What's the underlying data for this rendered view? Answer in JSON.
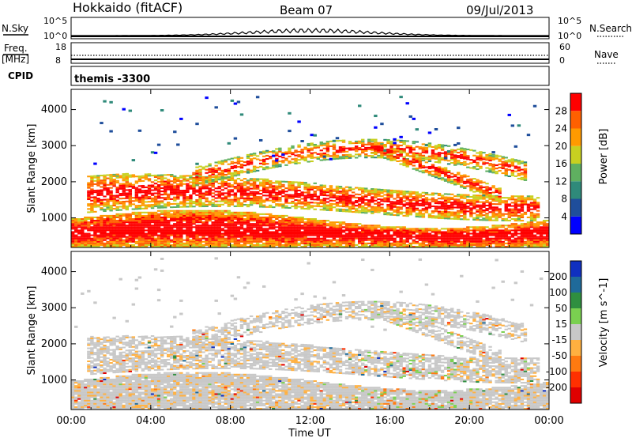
{
  "header": {
    "station": "Hokkaido (fitACF)",
    "beam": "Beam 07",
    "date": "09/Jul/2013"
  },
  "strip": {
    "nsky_label": "N.Sky",
    "nsearch_label": "N.Search",
    "nsky_ticks": [
      "10^5",
      "10^0"
    ],
    "nsearch_ticks": [
      "10^5",
      "10^0"
    ],
    "freq_label": "Freq.",
    "freq_unit": "[MHz]",
    "freq_ticks": [
      "18",
      "8"
    ],
    "nave_label": "Nave",
    "nave_ticks": [
      "60",
      "0"
    ],
    "cpid_label": "CPID",
    "cpid_value": "themis -3300"
  },
  "chart_data": [
    {
      "type": "heatmap",
      "parameter": "power",
      "ylabel": "Slant Range [km]",
      "y_ticks": [
        "1000",
        "2000",
        "3000",
        "4000"
      ],
      "ylim": [
        180,
        4560
      ],
      "colorbar_label": "Power [dB]",
      "colorbar_ticks": [
        "4",
        "8",
        "12",
        "16",
        "20",
        "24",
        "28"
      ],
      "colors": [
        "#0000ff",
        "#1f4e9b",
        "#2f8a7a",
        "#5fb060",
        "#c8d020",
        "#ff9a00",
        "#ff6000",
        "#ff0000"
      ]
    },
    {
      "type": "heatmap",
      "parameter": "velocity",
      "ylabel": "Slant Range [km]",
      "y_ticks": [
        "1000",
        "2000",
        "3000",
        "4000"
      ],
      "ylim": [
        180,
        4560
      ],
      "colorbar_label": "Velocity [m s^-1]",
      "colorbar_ticks": [
        "200",
        "100",
        "50",
        "15",
        "-15",
        "-50",
        "-100",
        "-200"
      ],
      "colors": [
        "#1030c0",
        "#1f6a9a",
        "#2f8f40",
        "#7ad050",
        "#c8c8c8",
        "#ffb040",
        "#ff7a10",
        "#ff3000",
        "#e00000"
      ]
    }
  ],
  "x_axis": {
    "label": "Time UT",
    "ticks": [
      "00:00",
      "04:00",
      "08:00",
      "12:00",
      "16:00",
      "20:00",
      "00:00"
    ]
  }
}
